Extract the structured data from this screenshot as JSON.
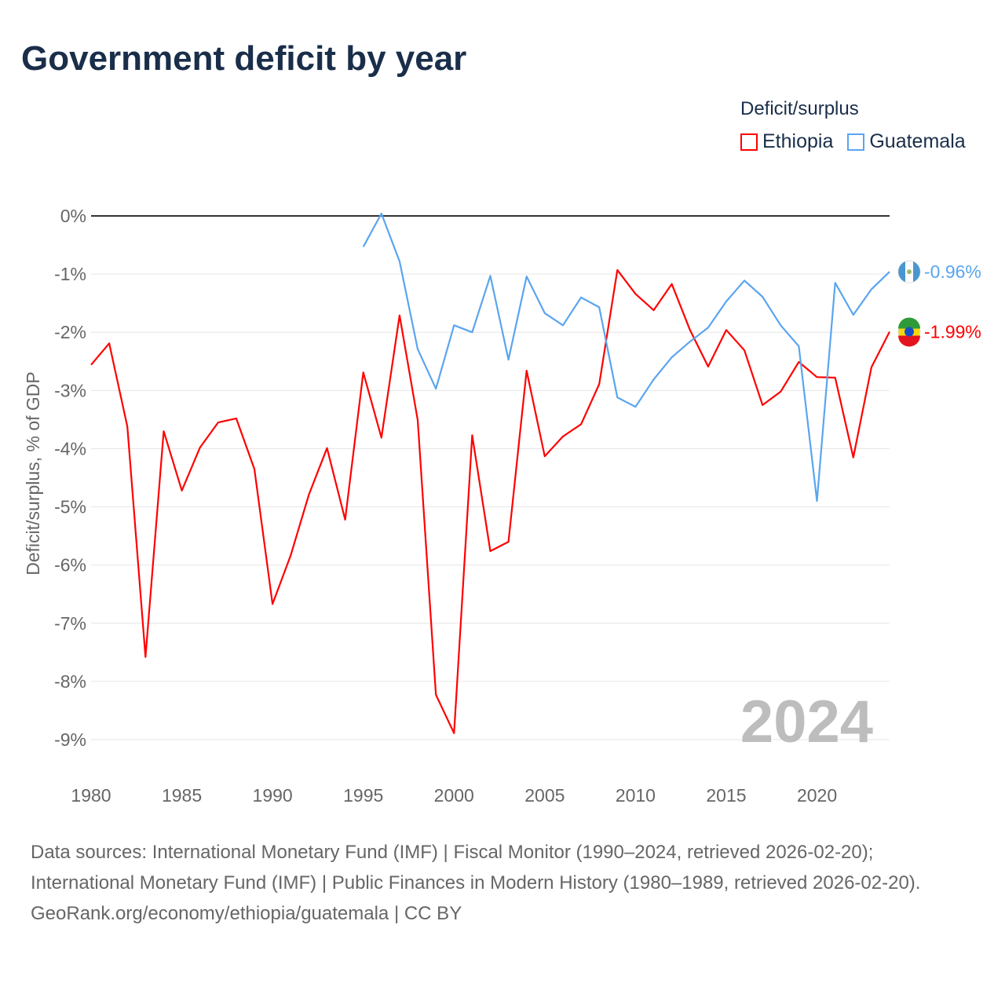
{
  "title": "Government deficit by year",
  "legend": {
    "title": "Deficit/surplus",
    "items": [
      {
        "label": "Ethiopia",
        "color": "#ff0000"
      },
      {
        "label": "Guatemala",
        "color": "#5aa5ef"
      }
    ]
  },
  "chart_data": {
    "type": "line",
    "ylabel": "Deficit/surplus, % of GDP",
    "xlabel": "",
    "xlim": [
      1980,
      2024
    ],
    "ylim": [
      -9,
      0
    ],
    "x_ticks": [
      "1980",
      "1985",
      "1990",
      "1995",
      "2000",
      "2005",
      "2010",
      "2015",
      "2020"
    ],
    "y_ticks": [
      "0%",
      "-1%",
      "-2%",
      "-3%",
      "-4%",
      "-5%",
      "-6%",
      "-7%",
      "-8%",
      "-9%"
    ],
    "grid": true,
    "annotation_year": "2024",
    "series": [
      {
        "name": "Ethiopia",
        "color": "#ff0000",
        "start_year": 1980,
        "end_label": "-1.99%",
        "values": [
          -2.56,
          -2.19,
          -3.62,
          -7.58,
          -3.7,
          -4.72,
          -3.98,
          -3.55,
          -3.48,
          -4.35,
          -6.67,
          -5.83,
          -4.79,
          -3.99,
          -5.22,
          -2.69,
          -3.81,
          -1.71,
          -3.51,
          -8.23,
          -8.89,
          -3.77,
          -5.76,
          -5.6,
          -2.66,
          -4.13,
          -3.79,
          -3.58,
          -2.89,
          -0.93,
          -1.34,
          -1.62,
          -1.17,
          -1.96,
          -2.59,
          -1.96,
          -2.31,
          -3.25,
          -3.02,
          -2.51,
          -2.77,
          -2.78,
          -4.15,
          -2.6,
          -1.99
        ]
      },
      {
        "name": "Guatemala",
        "color": "#5aa5ef",
        "start_year": 1995,
        "end_label": "-0.96%",
        "values": [
          -0.53,
          0.04,
          -0.78,
          -2.29,
          -2.97,
          -1.88,
          -2.0,
          -1.03,
          -2.47,
          -1.04,
          -1.67,
          -1.88,
          -1.4,
          -1.57,
          -3.12,
          -3.28,
          -2.81,
          -2.43,
          -2.16,
          -1.92,
          -1.47,
          -1.11,
          -1.39,
          -1.88,
          -2.24,
          -4.9,
          -1.15,
          -1.7,
          -1.26,
          -0.96
        ]
      }
    ]
  },
  "footer": {
    "sources": "Data sources: International Monetary Fund (IMF) | Fiscal Monitor (1990–2024, retrieved 2026-02-20); International Monetary Fund (IMF) | Public Finances in Modern History (1980–1989, retrieved 2026-02-20).",
    "credit": "GeoRank.org/economy/ethiopia/guatemala | CC BY"
  }
}
